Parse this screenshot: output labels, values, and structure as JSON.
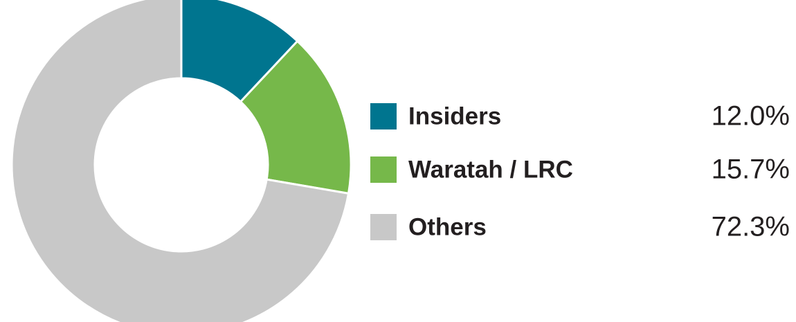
{
  "chart_data": {
    "type": "donut",
    "categories": [
      "Insiders",
      "Waratah / LRC",
      "Others"
    ],
    "values": [
      12.0,
      15.7,
      72.3
    ],
    "value_labels": [
      "12.0%",
      "15.7%",
      "72.3%"
    ],
    "colors": [
      "#00758f",
      "#76b84a",
      "#c8c8c8"
    ],
    "legend": "right"
  }
}
